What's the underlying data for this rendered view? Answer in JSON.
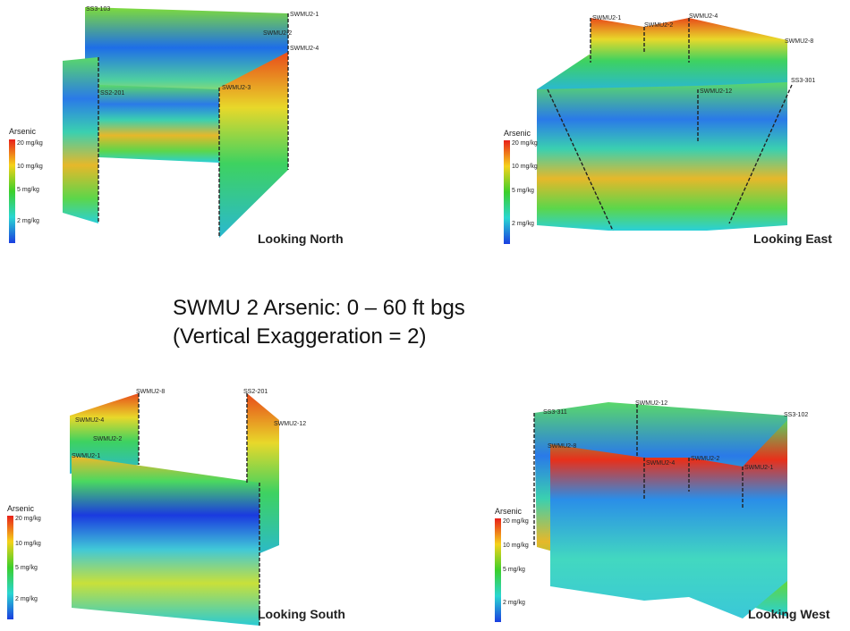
{
  "title": [
    "SWMU 2 Arsenic: 0 – 60 ft bgs",
    "(Vertical Exaggeration = 2)"
  ],
  "panels": [
    {
      "caption": "Looking North",
      "legend": {
        "title": "Arsenic",
        "labels": [
          "20 mg/kg",
          "10 mg/kg",
          "5 mg/kg",
          "2 mg/kg"
        ]
      },
      "wells": [
        "SS3-103",
        "SWMU2-1",
        "SWMU2-2",
        "SWMU2-4",
        "SS2-201",
        "SWMU2-3"
      ]
    },
    {
      "caption": "Looking East",
      "legend": {
        "title": "Arsenic",
        "labels": [
          "20 mg/kg",
          "10 mg/kg",
          "5 mg/kg",
          "2 mg/kg"
        ]
      },
      "wells": [
        "SWMU2-1",
        "SWMU2-2",
        "SWMU2-4",
        "SWMU2-8",
        "SS3-301",
        "SWMU2-12"
      ]
    },
    {
      "caption": "Looking South",
      "legend": {
        "title": "Arsenic",
        "labels": [
          "20 mg/kg",
          "10 mg/kg",
          "5 mg/kg",
          "2 mg/kg"
        ]
      },
      "wells": [
        "SWMU2-8",
        "SS2-201",
        "SWMU2-4",
        "SWMU2-12",
        "SWMU2-2",
        "SWMU2-1"
      ]
    },
    {
      "caption": "Looking West",
      "legend": {
        "title": "Arsenic",
        "labels": [
          "20 mg/kg",
          "10 mg/kg",
          "5 mg/kg",
          "2 mg/kg"
        ]
      },
      "wells": [
        "SS3-311",
        "SWMU2-12",
        "SS3-102",
        "SWMU2-8",
        "SWMU2-4",
        "SWMU2-2",
        "SWMU2-1"
      ]
    }
  ]
}
